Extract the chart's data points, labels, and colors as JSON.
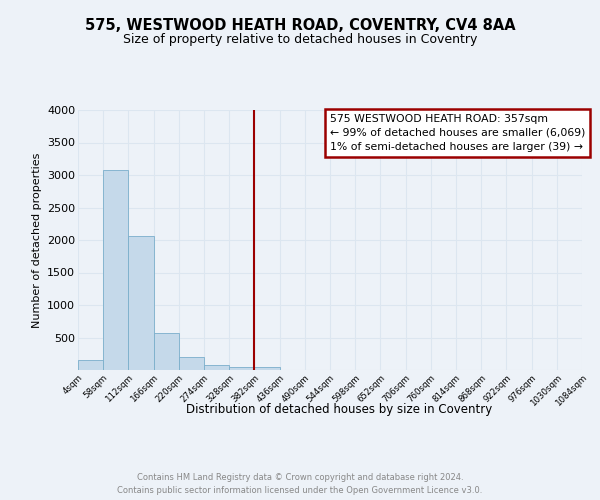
{
  "title": "575, WESTWOOD HEATH ROAD, COVENTRY, CV4 8AA",
  "subtitle": "Size of property relative to detached houses in Coventry",
  "xlabel": "Distribution of detached houses by size in Coventry",
  "ylabel": "Number of detached properties",
  "bar_values": [
    150,
    3070,
    2060,
    570,
    200,
    75,
    50,
    40,
    0,
    0,
    0,
    0,
    0,
    0,
    0,
    0,
    0,
    0,
    0,
    0
  ],
  "bin_edges": [
    0,
    1,
    2,
    3,
    4,
    5,
    6,
    7,
    8,
    9,
    10,
    11,
    12,
    13,
    14,
    15,
    16,
    17,
    18,
    19,
    20
  ],
  "bin_labels": [
    "4sqm",
    "58sqm",
    "112sqm",
    "166sqm",
    "220sqm",
    "274sqm",
    "328sqm",
    "382sqm",
    "436sqm",
    "490sqm",
    "544sqm",
    "598sqm",
    "652sqm",
    "706sqm",
    "760sqm",
    "814sqm",
    "868sqm",
    "922sqm",
    "976sqm",
    "1030sqm",
    "1084sqm"
  ],
  "bar_color": "#c5d9ea",
  "bar_edge_color": "#7aaecb",
  "vline_x": 7,
  "vline_color": "#9b0000",
  "annotation_text": "575 WESTWOOD HEATH ROAD: 357sqm\n← 99% of detached houses are smaller (6,069)\n1% of semi-detached houses are larger (39) →",
  "annotation_box_color": "#ffffff",
  "annotation_box_edge": "#9b0000",
  "ylim": [
    0,
    4000
  ],
  "yticks": [
    0,
    500,
    1000,
    1500,
    2000,
    2500,
    3000,
    3500,
    4000
  ],
  "grid_color": "#dce6f0",
  "footer_line1": "Contains HM Land Registry data © Crown copyright and database right 2024.",
  "footer_line2": "Contains public sector information licensed under the Open Government Licence v3.0.",
  "title_fontsize": 10.5,
  "subtitle_fontsize": 9,
  "bg_color": "#edf2f8"
}
